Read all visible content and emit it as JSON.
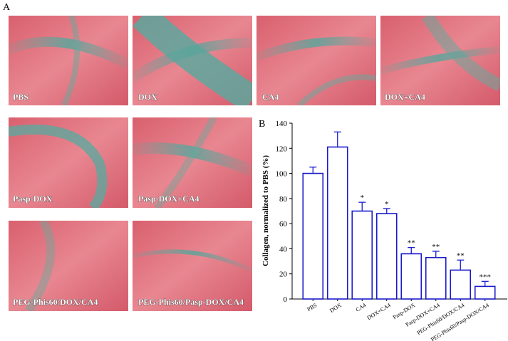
{
  "panel_a": {
    "label": "A",
    "images": [
      "PBS",
      "DOX",
      "CA4",
      "DOX+CA4",
      "Pasp-DOX",
      "Pasp-DOX+CA4",
      "PEG-Phis60/DOX/CA4",
      "PEG-Phis60/Pasp-DOX/CA4"
    ]
  },
  "chart_data": {
    "type": "bar",
    "panel_label": "B",
    "y_label": "Collagen, normalized to PBS (%)",
    "categories": [
      "PBS",
      "DOX",
      "CA4",
      "DOX+CA4",
      "Pasp-DOX",
      "Pasp-DOX+CA4",
      "PEG-Phis60/DOX/CA4",
      "PEG-Phis60/Pasp-DOX/CA4"
    ],
    "values": [
      100,
      121,
      70,
      68,
      36,
      33,
      23,
      10
    ],
    "errors": [
      5,
      12,
      7,
      4,
      5,
      5,
      8,
      4
    ],
    "annotations": [
      null,
      null,
      "*",
      "*",
      "**",
      "**",
      "**",
      "***"
    ],
    "color": "#1a1acc",
    "ylim": [
      0,
      140
    ],
    "yticks": [
      0,
      20,
      40,
      60,
      80,
      100,
      120,
      140
    ]
  }
}
